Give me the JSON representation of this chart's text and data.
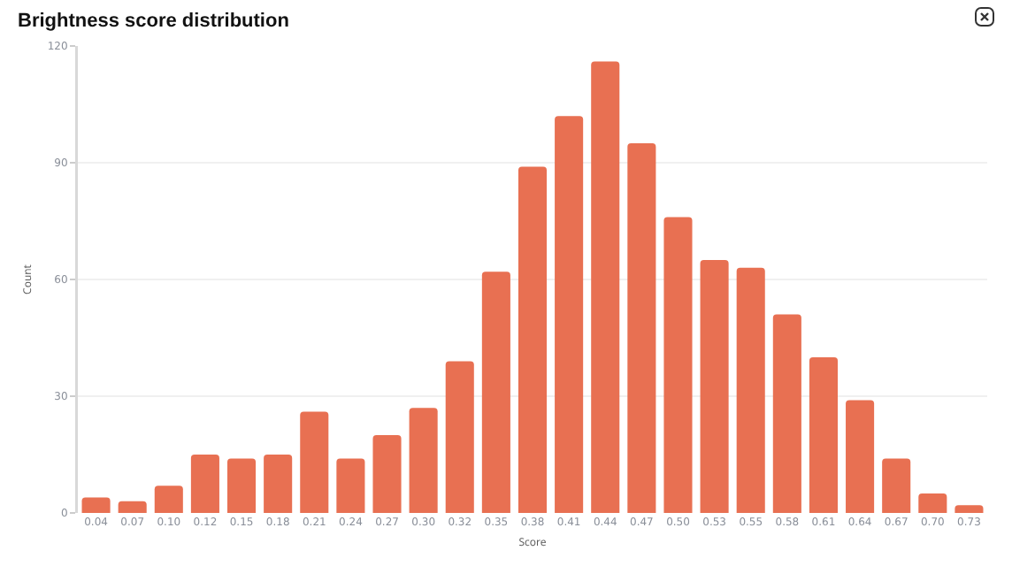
{
  "chart_data": {
    "type": "bar",
    "title": "Brightness score distribution",
    "xlabel": "Score",
    "ylabel": "Count",
    "categories": [
      "0.04",
      "0.07",
      "0.10",
      "0.12",
      "0.15",
      "0.18",
      "0.21",
      "0.24",
      "0.27",
      "0.30",
      "0.32",
      "0.35",
      "0.38",
      "0.41",
      "0.44",
      "0.47",
      "0.50",
      "0.53",
      "0.55",
      "0.58",
      "0.61",
      "0.64",
      "0.67",
      "0.70",
      "0.73"
    ],
    "values": [
      4,
      3,
      7,
      15,
      14,
      15,
      26,
      14,
      20,
      27,
      39,
      62,
      89,
      102,
      116,
      95,
      76,
      65,
      63,
      51,
      40,
      29,
      14,
      5,
      2
    ],
    "color": "#e87052",
    "ylim": [
      0,
      120
    ],
    "yticks": [
      0,
      30,
      60,
      90,
      120
    ],
    "grid": "y",
    "legend": false
  }
}
